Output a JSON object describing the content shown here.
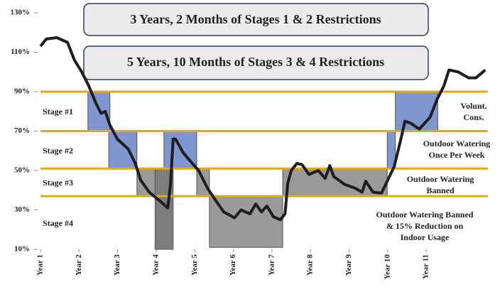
{
  "chart_data": {
    "type": "line",
    "ylim": [
      10,
      130
    ],
    "yticks": [
      {
        "value": 10,
        "label": "10%"
      },
      {
        "value": 30,
        "label": "30%"
      },
      {
        "value": 50,
        "label": "50%"
      },
      {
        "value": 70,
        "label": "70%"
      },
      {
        "value": 90,
        "label": "90%"
      },
      {
        "value": 110,
        "label": "110%"
      },
      {
        "value": 130,
        "label": "130%"
      }
    ],
    "xlim": [
      1,
      12.6
    ],
    "xticks": [
      {
        "value": 1,
        "label": "Year 1"
      },
      {
        "value": 2,
        "label": "Year 2"
      },
      {
        "value": 3,
        "label": "Year 3"
      },
      {
        "value": 4,
        "label": "Year 4"
      },
      {
        "value": 5,
        "label": "Year 5"
      },
      {
        "value": 6,
        "label": "Year 6"
      },
      {
        "value": 7,
        "label": "Year 7"
      },
      {
        "value": 8,
        "label": "Year 8"
      },
      {
        "value": 9,
        "label": "Year 9"
      },
      {
        "value": 10,
        "label": "Year 10"
      },
      {
        "value": 11,
        "label": "Year 11"
      }
    ],
    "x": [
      1,
      1.15,
      1.42,
      1.7,
      1.88,
      2.07,
      2.25,
      2.44,
      2.57,
      2.68,
      2.8,
      2.99,
      3.27,
      3.45,
      3.6,
      3.82,
      4.1,
      4.3,
      4.37,
      4.44,
      4.5,
      4.7,
      4.92,
      5.1,
      5.33,
      5.57,
      5.75,
      6.03,
      6.2,
      6.43,
      6.58,
      6.73,
      6.87,
      7.04,
      7.22,
      7.34,
      7.41,
      7.5,
      7.65,
      7.78,
      7.96,
      8.2,
      8.38,
      8.5,
      8.6,
      8.88,
      9.16,
      9.34,
      9.43,
      9.62,
      9.84,
      9.99,
      10.17,
      10.32,
      10.45,
      10.6,
      10.82,
      11.1,
      11.28,
      11.46,
      11.59,
      11.83,
      12.1,
      12.29,
      12.53
    ],
    "series": [
      {
        "color": "#1e1e1e",
        "values": [
          113,
          116.7,
          117.4,
          115,
          106,
          100,
          93,
          84,
          79,
          80,
          73,
          66,
          61,
          54,
          45,
          39,
          34.5,
          31,
          43,
          66,
          66,
          59,
          54,
          50,
          41,
          34,
          29,
          26,
          30,
          28,
          33,
          29,
          32,
          26.5,
          25,
          28,
          43.5,
          50,
          53.6,
          53,
          48,
          50,
          46,
          52.5,
          47,
          43,
          41,
          39,
          44.6,
          39,
          38.5,
          44.6,
          52,
          64,
          75,
          74,
          71,
          77,
          86,
          93,
          101,
          100,
          97,
          97,
          101
        ]
      }
    ],
    "thresholds": [
      90,
      70,
      51,
      37
    ],
    "threshold_color": "#e3a81c",
    "bands": [
      {
        "x": [
          2.23,
          2.8
        ],
        "y": [
          70,
          90
        ],
        "color": "#7f96cf"
      },
      {
        "x": [
          2.77,
          3.5
        ],
        "y": [
          51,
          70
        ],
        "color": "#7f96cf"
      },
      {
        "x": [
          3.5,
          3.97
        ],
        "y": [
          37,
          51
        ],
        "color": "#9a9a9a"
      },
      {
        "x": [
          3.97,
          4.44
        ],
        "y": [
          10,
          51
        ],
        "color": "#7d7d7d"
      },
      {
        "x": [
          4.2,
          5.05
        ],
        "y": [
          51,
          70
        ],
        "color": "#7f96cf"
      },
      {
        "x": [
          5.05,
          5.38
        ],
        "y": [
          37,
          51
        ],
        "color": "#9a9a9a"
      },
      {
        "x": [
          5.38,
          7.28
        ],
        "y": [
          11,
          37
        ],
        "color": "#9a9a9a"
      },
      {
        "x": [
          7.28,
          9.99
        ],
        "y": [
          37,
          51
        ],
        "color": "#9a9a9a"
      },
      {
        "x": [
          9.99,
          10.2
        ],
        "y": [
          51,
          70
        ],
        "color": "#7f96cf"
      },
      {
        "x": [
          10.2,
          11.3
        ],
        "y": [
          70,
          90
        ],
        "color": "#7f96cf"
      }
    ],
    "banners": [
      "3 Years, 2 Months of Stages 1 & 2 Restrictions",
      "5 Years, 10 Months of Stages 3 & 4 Restrictions"
    ],
    "stage_labels": [
      "Stage #1",
      "Stage #2",
      "Stage #3",
      "Stage #4"
    ],
    "stage_notes": [
      [
        "Volunt.",
        "Cons."
      ],
      [
        "Outdoor Watering",
        "Once Per Week"
      ],
      [
        "Outdoor Watering",
        "Banned"
      ],
      [
        "Outdoor Watering Banned",
        "& 15% Reduction on",
        "Indoor Usage"
      ]
    ]
  }
}
